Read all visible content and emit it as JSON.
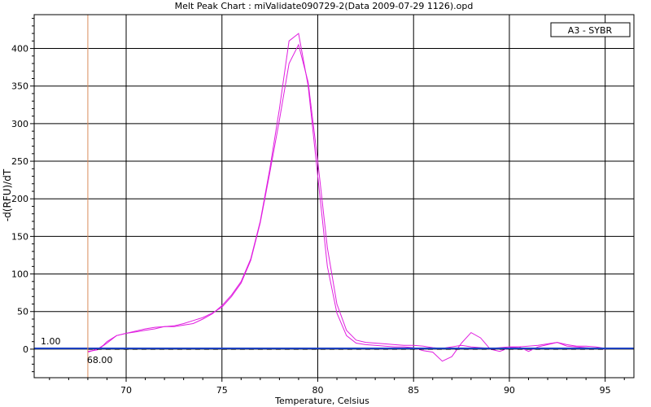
{
  "chart_data": {
    "type": "line",
    "title": "Melt Peak Chart : miValidate090729-2(Data 2009-07-29 1126).opd",
    "xlabel": "Temperature, Celsius",
    "ylabel": "-d(RFU)/dT",
    "xlim": [
      65.2,
      96.5
    ],
    "ylim": [
      -38,
      445
    ],
    "x_ticks": [
      70,
      75,
      80,
      85,
      90,
      95
    ],
    "y_ticks": [
      0,
      50,
      100,
      150,
      200,
      250,
      300,
      350,
      400
    ],
    "grid": true,
    "legend": {
      "position": "top-right",
      "entries": [
        "A3 - SYBR"
      ]
    },
    "threshold": {
      "value": 1.0,
      "label": "1.00",
      "color": "#1a3fbf"
    },
    "cursor": {
      "x": 68.0,
      "label": "68.00",
      "color": "#d98b5a"
    },
    "series": [
      {
        "color": "#e01ee0",
        "x": [
          68.0,
          68.5,
          68.8,
          69.0,
          69.5,
          70.0,
          70.5,
          71.0,
          71.5,
          72.0,
          72.5,
          73.0,
          73.5,
          74.0,
          74.5,
          75.0,
          75.5,
          76.0,
          76.5,
          77.0,
          77.5,
          78.0,
          78.5,
          79.0,
          79.5,
          80.0,
          80.5,
          81.0,
          81.5,
          82.0,
          82.5,
          83.0,
          83.5,
          84.0,
          84.5,
          85.0,
          85.5,
          86.0,
          86.5,
          87.0,
          87.5,
          88.0,
          88.5,
          89.0,
          89.5,
          90.0,
          90.5,
          91.0,
          91.5,
          92.0,
          92.5,
          93.0,
          93.5,
          94.0,
          94.5,
          95.0
        ],
        "values": [
          -4,
          0,
          5,
          10,
          18,
          21,
          23,
          25,
          27,
          30,
          30,
          32,
          34,
          40,
          47,
          58,
          72,
          90,
          120,
          170,
          240,
          320,
          410,
          420,
          350,
          230,
          110,
          48,
          18,
          8,
          6,
          5,
          4,
          3,
          3,
          2,
          -2,
          -4,
          -16,
          -10,
          8,
          22,
          15,
          0,
          -3,
          2,
          3,
          -3,
          3,
          6,
          9,
          4,
          3,
          2,
          1,
          0
        ]
      },
      {
        "color": "#e01ee0",
        "x": [
          68.0,
          68.5,
          69.0,
          69.5,
          70.0,
          70.5,
          71.0,
          71.5,
          72.0,
          72.5,
          73.0,
          73.5,
          74.0,
          74.5,
          75.0,
          75.5,
          76.0,
          76.5,
          77.0,
          77.5,
          78.0,
          78.5,
          79.0,
          79.5,
          80.0,
          80.5,
          81.0,
          81.5,
          82.0,
          82.5,
          83.0,
          83.5,
          84.0,
          84.5,
          85.0,
          85.5,
          86.0,
          86.5,
          87.0,
          87.5,
          88.0,
          88.5,
          89.0,
          89.5,
          90.0,
          90.5,
          91.0,
          91.5,
          92.0,
          92.5,
          93.0,
          93.5,
          94.0,
          94.5,
          95.0
        ],
        "values": [
          -3,
          -1,
          8,
          18,
          21,
          24,
          27,
          29,
          30,
          31,
          34,
          38,
          42,
          48,
          56,
          70,
          88,
          118,
          168,
          235,
          305,
          380,
          405,
          355,
          250,
          135,
          60,
          25,
          12,
          9,
          8,
          7,
          6,
          5,
          5,
          4,
          2,
          1,
          3,
          5,
          3,
          2,
          1,
          2,
          3,
          3,
          4,
          5,
          7,
          9,
          6,
          4,
          4,
          3,
          1
        ]
      },
      {
        "color": "#000000",
        "dash": true,
        "x": [
          68.0,
          70.0,
          75.0,
          80.0,
          85.0,
          90.0,
          95.0
        ],
        "values": [
          0,
          0,
          0,
          0,
          0,
          0,
          0
        ]
      }
    ]
  }
}
